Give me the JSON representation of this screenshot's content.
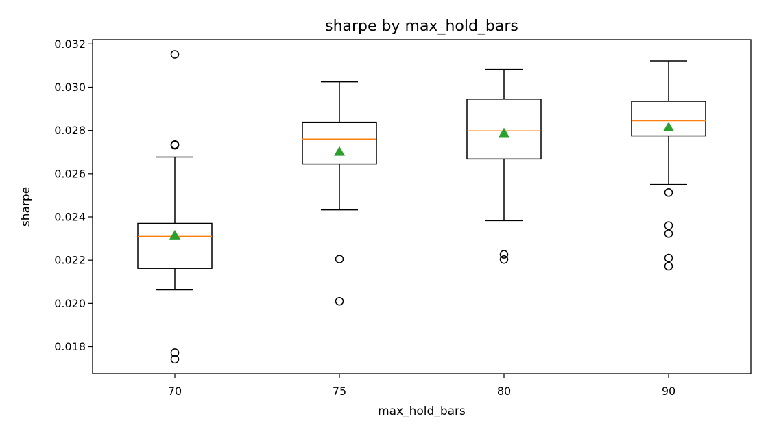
{
  "chart_data": {
    "type": "box",
    "title": "sharpe by max_hold_bars",
    "xlabel": "max_hold_bars",
    "ylabel": "sharpe",
    "categories": [
      "70",
      "75",
      "80",
      "90"
    ],
    "ylim": [
      0.01675,
      0.0322
    ],
    "yticks": [
      0.018,
      0.02,
      0.022,
      0.024,
      0.026,
      0.028,
      0.03,
      0.032
    ],
    "ytick_labels": [
      "0.018",
      "0.020",
      "0.022",
      "0.024",
      "0.026",
      "0.028",
      "0.030",
      "0.032"
    ],
    "grid": false,
    "show_means": true,
    "colors": {
      "box": "#000000",
      "median": "#ff7f0e",
      "mean_marker": "#2ca02c",
      "outlier": "#000000"
    },
    "boxes": [
      {
        "category": "70",
        "whisker_low": 0.02063,
        "q1": 0.02162,
        "median": 0.0231,
        "q3": 0.0237,
        "whisker_high": 0.02677,
        "mean": 0.02315,
        "outliers": [
          0.03152,
          0.02732,
          0.02735,
          0.01772,
          0.01742
        ]
      },
      {
        "category": "75",
        "whisker_low": 0.02433,
        "q1": 0.02645,
        "median": 0.0276,
        "q3": 0.02838,
        "whisker_high": 0.03025,
        "mean": 0.02702,
        "outliers": [
          0.02205,
          0.0201
        ]
      },
      {
        "category": "80",
        "whisker_low": 0.02383,
        "q1": 0.02668,
        "median": 0.02798,
        "q3": 0.02945,
        "whisker_high": 0.03082,
        "mean": 0.02788,
        "outliers": [
          0.02227,
          0.02203
        ]
      },
      {
        "category": "90",
        "whisker_low": 0.0255,
        "q1": 0.02775,
        "median": 0.02845,
        "q3": 0.02935,
        "whisker_high": 0.03122,
        "mean": 0.02815,
        "outliers": [
          0.02513,
          0.0236,
          0.02323,
          0.0221,
          0.02172
        ]
      }
    ]
  }
}
